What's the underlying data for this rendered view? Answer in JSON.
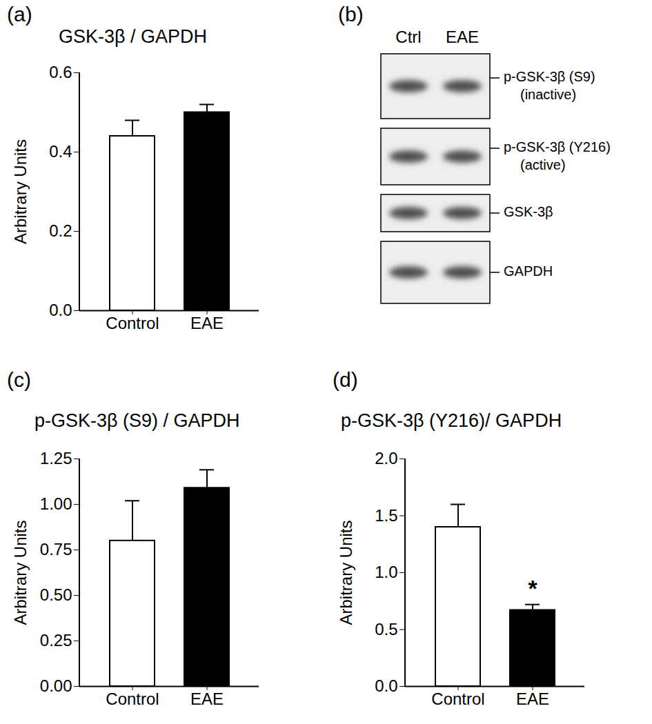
{
  "chart_data": [
    {
      "panel": "(a)",
      "type": "bar",
      "title": "GSK-3β / GAPDH",
      "y_label": "Arbitrary Units",
      "categories": [
        "Control",
        "EAE"
      ],
      "values": [
        0.44,
        0.5
      ],
      "errors": [
        0.04,
        0.02
      ],
      "colors": [
        "#ffffff",
        "#000000"
      ],
      "ylim": [
        0,
        0.6
      ],
      "yticks": [
        {
          "value": 0,
          "label": "0.0"
        },
        {
          "value": 0.2,
          "label": "0.2"
        },
        {
          "value": 0.4,
          "label": "0.4"
        },
        {
          "value": 0.6,
          "label": "0.6"
        }
      ]
    },
    {
      "panel": "(c)",
      "type": "bar",
      "title": "p-GSK-3β (S9) / GAPDH",
      "y_label": "Arbitrary Units",
      "categories": [
        "Control",
        "EAE"
      ],
      "values": [
        0.8,
        1.09
      ],
      "errors": [
        0.22,
        0.1
      ],
      "colors": [
        "#ffffff",
        "#000000"
      ],
      "ylim": [
        0,
        1.25
      ],
      "yticks": [
        {
          "value": 0,
          "label": "0.00"
        },
        {
          "value": 0.25,
          "label": "0.25"
        },
        {
          "value": 0.5,
          "label": "0.50"
        },
        {
          "value": 0.75,
          "label": "0.75"
        },
        {
          "value": 1,
          "label": "1.00"
        },
        {
          "value": 1.25,
          "label": "1.25"
        }
      ]
    },
    {
      "panel": "(d)",
      "type": "bar",
      "title": "p-GSK-3β (Y216)/ GAPDH",
      "y_label": "Arbitrary Units",
      "categories": [
        "Control",
        "EAE"
      ],
      "values": [
        1.4,
        0.67
      ],
      "errors": [
        0.2,
        0.05
      ],
      "colors": [
        "#ffffff",
        "#000000"
      ],
      "ylim": [
        0,
        2.0
      ],
      "yticks": [
        {
          "value": 0,
          "label": "0.0"
        },
        {
          "value": 0.5,
          "label": "0.5"
        },
        {
          "value": 1,
          "label": "1.0"
        },
        {
          "value": 1.5,
          "label": "1.5"
        },
        {
          "value": 2,
          "label": "2.0"
        }
      ],
      "annotations": [
        {
          "text": "*",
          "category": "EAE"
        }
      ]
    }
  ],
  "blot": {
    "panel": "(b)",
    "lanes": [
      "Ctrl",
      "EAE"
    ],
    "rows": [
      {
        "label": "p-GSK-3β (S9)",
        "note": "(inactive)"
      },
      {
        "label": "p-GSK-3β (Y216)",
        "note": "(active)"
      },
      {
        "label": "GSK-3β"
      },
      {
        "label": "GAPDH"
      }
    ]
  }
}
